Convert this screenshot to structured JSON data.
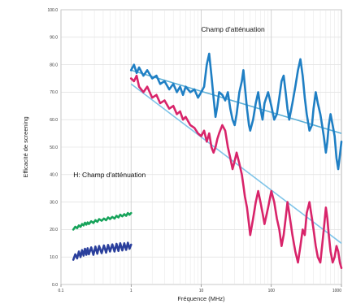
{
  "chart_data": {
    "type": "line",
    "xlabel": "Fréquence (MHz)",
    "ylabel": "Efficacité de screening",
    "x_scale": "log",
    "xlim": [
      0.1,
      1000
    ],
    "ylim": [
      0,
      100
    ],
    "x_ticks": [
      {
        "value": 0.1,
        "label": "0.1"
      },
      {
        "value": 1,
        "label": "1"
      },
      {
        "value": 10,
        "label": "10"
      },
      {
        "value": 100,
        "label": "100"
      },
      {
        "value": 1000,
        "label": "1000"
      }
    ],
    "y_ticks": [
      {
        "value": 0,
        "label": "0.0"
      },
      {
        "value": 10,
        "label": "10.0"
      },
      {
        "value": 20,
        "label": "20.0"
      },
      {
        "value": 30,
        "label": "30.0"
      },
      {
        "value": 40,
        "label": "40.0"
      },
      {
        "value": 50,
        "label": "50.0"
      },
      {
        "value": 60,
        "label": "60.0"
      },
      {
        "value": 70,
        "label": "70.0"
      },
      {
        "value": 80,
        "label": "80.0"
      },
      {
        "value": 90,
        "label": "90.0"
      },
      {
        "value": 100,
        "label": "100.0"
      }
    ],
    "grid": true,
    "annotations": [
      {
        "text": "Champ d'atténuation",
        "x": 10,
        "y": 92
      },
      {
        "text": "H: Champ d'atténuation",
        "x": 0.15,
        "y": 39
      }
    ],
    "series": [
      {
        "color": "#1f7fc4",
        "points": [
          [
            1,
            78
          ],
          [
            1.1,
            80
          ],
          [
            1.2,
            77
          ],
          [
            1.3,
            79
          ],
          [
            1.5,
            76
          ],
          [
            1.7,
            78
          ],
          [
            2,
            75
          ],
          [
            2.3,
            76
          ],
          [
            2.6,
            73
          ],
          [
            3,
            74
          ],
          [
            3.5,
            71
          ],
          [
            4,
            73
          ],
          [
            4.5,
            70
          ],
          [
            5,
            72
          ],
          [
            5.5,
            69
          ],
          [
            6,
            72
          ],
          [
            7,
            70
          ],
          [
            8,
            71
          ],
          [
            9,
            68
          ],
          [
            10,
            70
          ],
          [
            11,
            72
          ],
          [
            12,
            80
          ],
          [
            13,
            84
          ],
          [
            14,
            76
          ],
          [
            15,
            68
          ],
          [
            16,
            61
          ],
          [
            17,
            65
          ],
          [
            18,
            70
          ],
          [
            20,
            69
          ],
          [
            22,
            67
          ],
          [
            24,
            70
          ],
          [
            26,
            64
          ],
          [
            28,
            60
          ],
          [
            30,
            58
          ],
          [
            32,
            62
          ],
          [
            35,
            70
          ],
          [
            38,
            74
          ],
          [
            40,
            78
          ],
          [
            42,
            72
          ],
          [
            45,
            64
          ],
          [
            48,
            58
          ],
          [
            50,
            56
          ],
          [
            55,
            60
          ],
          [
            60,
            66
          ],
          [
            65,
            70
          ],
          [
            70,
            64
          ],
          [
            75,
            60
          ],
          [
            80,
            66
          ],
          [
            90,
            70
          ],
          [
            100,
            65
          ],
          [
            110,
            60
          ],
          [
            120,
            62
          ],
          [
            130,
            68
          ],
          [
            140,
            74
          ],
          [
            150,
            76
          ],
          [
            160,
            70
          ],
          [
            170,
            64
          ],
          [
            180,
            60
          ],
          [
            200,
            66
          ],
          [
            220,
            72
          ],
          [
            240,
            78
          ],
          [
            260,
            82
          ],
          [
            280,
            76
          ],
          [
            300,
            68
          ],
          [
            320,
            62
          ],
          [
            350,
            56
          ],
          [
            380,
            58
          ],
          [
            400,
            64
          ],
          [
            430,
            70
          ],
          [
            460,
            66
          ],
          [
            500,
            62
          ],
          [
            530,
            58
          ],
          [
            560,
            54
          ],
          [
            600,
            48
          ],
          [
            630,
            52
          ],
          [
            660,
            58
          ],
          [
            700,
            62
          ],
          [
            750,
            58
          ],
          [
            800,
            54
          ],
          [
            850,
            46
          ],
          [
            900,
            42
          ],
          [
            950,
            47
          ],
          [
            1000,
            52
          ]
        ]
      },
      {
        "color": "#d8246a",
        "points": [
          [
            1,
            75
          ],
          [
            1.1,
            74
          ],
          [
            1.2,
            76
          ],
          [
            1.3,
            72
          ],
          [
            1.5,
            70
          ],
          [
            1.7,
            72
          ],
          [
            2,
            68
          ],
          [
            2.3,
            69
          ],
          [
            2.6,
            66
          ],
          [
            3,
            67
          ],
          [
            3.5,
            64
          ],
          [
            4,
            65
          ],
          [
            4.5,
            62
          ],
          [
            5,
            63
          ],
          [
            5.5,
            60
          ],
          [
            6,
            61
          ],
          [
            7,
            58
          ],
          [
            8,
            57
          ],
          [
            9,
            55
          ],
          [
            10,
            54
          ],
          [
            11,
            56
          ],
          [
            12,
            52
          ],
          [
            13,
            55
          ],
          [
            14,
            50
          ],
          [
            15,
            48
          ],
          [
            16,
            50
          ],
          [
            17,
            53
          ],
          [
            18,
            55
          ],
          [
            20,
            58
          ],
          [
            22,
            56
          ],
          [
            24,
            50
          ],
          [
            26,
            46
          ],
          [
            28,
            42
          ],
          [
            30,
            45
          ],
          [
            32,
            48
          ],
          [
            35,
            44
          ],
          [
            38,
            40
          ],
          [
            40,
            36
          ],
          [
            42,
            32
          ],
          [
            45,
            28
          ],
          [
            48,
            22
          ],
          [
            50,
            18
          ],
          [
            55,
            24
          ],
          [
            60,
            30
          ],
          [
            65,
            34
          ],
          [
            70,
            30
          ],
          [
            75,
            26
          ],
          [
            80,
            22
          ],
          [
            90,
            28
          ],
          [
            100,
            34
          ],
          [
            110,
            30
          ],
          [
            120,
            24
          ],
          [
            130,
            20
          ],
          [
            140,
            14
          ],
          [
            150,
            18
          ],
          [
            160,
            24
          ],
          [
            170,
            30
          ],
          [
            180,
            26
          ],
          [
            200,
            18
          ],
          [
            220,
            12
          ],
          [
            240,
            8
          ],
          [
            260,
            14
          ],
          [
            280,
            20
          ],
          [
            300,
            18
          ],
          [
            320,
            26
          ],
          [
            350,
            30
          ],
          [
            380,
            24
          ],
          [
            400,
            20
          ],
          [
            430,
            14
          ],
          [
            460,
            10
          ],
          [
            500,
            8
          ],
          [
            530,
            14
          ],
          [
            560,
            20
          ],
          [
            600,
            28
          ],
          [
            630,
            24
          ],
          [
            660,
            18
          ],
          [
            700,
            12
          ],
          [
            750,
            8
          ],
          [
            800,
            10
          ],
          [
            850,
            14
          ],
          [
            900,
            12
          ],
          [
            950,
            8
          ],
          [
            1000,
            6
          ]
        ]
      },
      {
        "color": "#16a35a",
        "points": [
          [
            0.15,
            20
          ],
          [
            0.16,
            21
          ],
          [
            0.17,
            20.5
          ],
          [
            0.18,
            21.5
          ],
          [
            0.19,
            21
          ],
          [
            0.2,
            22
          ],
          [
            0.21,
            21.5
          ],
          [
            0.22,
            22.5
          ],
          [
            0.23,
            21.8
          ],
          [
            0.24,
            22.6
          ],
          [
            0.25,
            22
          ],
          [
            0.27,
            23
          ],
          [
            0.29,
            22.4
          ],
          [
            0.31,
            23.4
          ],
          [
            0.33,
            22.8
          ],
          [
            0.35,
            23.8
          ],
          [
            0.38,
            23.2
          ],
          [
            0.41,
            24
          ],
          [
            0.44,
            23.4
          ],
          [
            0.47,
            24.4
          ],
          [
            0.5,
            23.8
          ],
          [
            0.54,
            24.6
          ],
          [
            0.58,
            24
          ],
          [
            0.62,
            25
          ],
          [
            0.66,
            24.4
          ],
          [
            0.7,
            25.4
          ],
          [
            0.75,
            24.8
          ],
          [
            0.8,
            25.6
          ],
          [
            0.85,
            25
          ],
          [
            0.9,
            26
          ],
          [
            0.95,
            25.4
          ],
          [
            1,
            26
          ]
        ]
      },
      {
        "color": "#2a3f9c",
        "points": [
          [
            0.15,
            9
          ],
          [
            0.16,
            11
          ],
          [
            0.17,
            9.5
          ],
          [
            0.18,
            12
          ],
          [
            0.19,
            10
          ],
          [
            0.2,
            12.5
          ],
          [
            0.21,
            10.5
          ],
          [
            0.22,
            13
          ],
          [
            0.23,
            10.8
          ],
          [
            0.24,
            13.2
          ],
          [
            0.25,
            11
          ],
          [
            0.27,
            13.5
          ],
          [
            0.29,
            10.8
          ],
          [
            0.31,
            13.8
          ],
          [
            0.33,
            11.2
          ],
          [
            0.35,
            14
          ],
          [
            0.38,
            11.4
          ],
          [
            0.41,
            14.2
          ],
          [
            0.44,
            11.6
          ],
          [
            0.47,
            14.4
          ],
          [
            0.5,
            12
          ],
          [
            0.54,
            14.6
          ],
          [
            0.58,
            12
          ],
          [
            0.62,
            14.8
          ],
          [
            0.66,
            12.2
          ],
          [
            0.7,
            15
          ],
          [
            0.75,
            12.4
          ],
          [
            0.8,
            15
          ],
          [
            0.85,
            12.6
          ],
          [
            0.9,
            15.2
          ],
          [
            0.95,
            13
          ],
          [
            1,
            14.5
          ]
        ]
      }
    ],
    "trend_lines": [
      {
        "color": "#5aaed6",
        "points": [
          [
            1,
            78
          ],
          [
            1000,
            55
          ]
        ]
      },
      {
        "color": "#7fc4e8",
        "points": [
          [
            1,
            73
          ],
          [
            1000,
            15
          ]
        ]
      }
    ]
  }
}
